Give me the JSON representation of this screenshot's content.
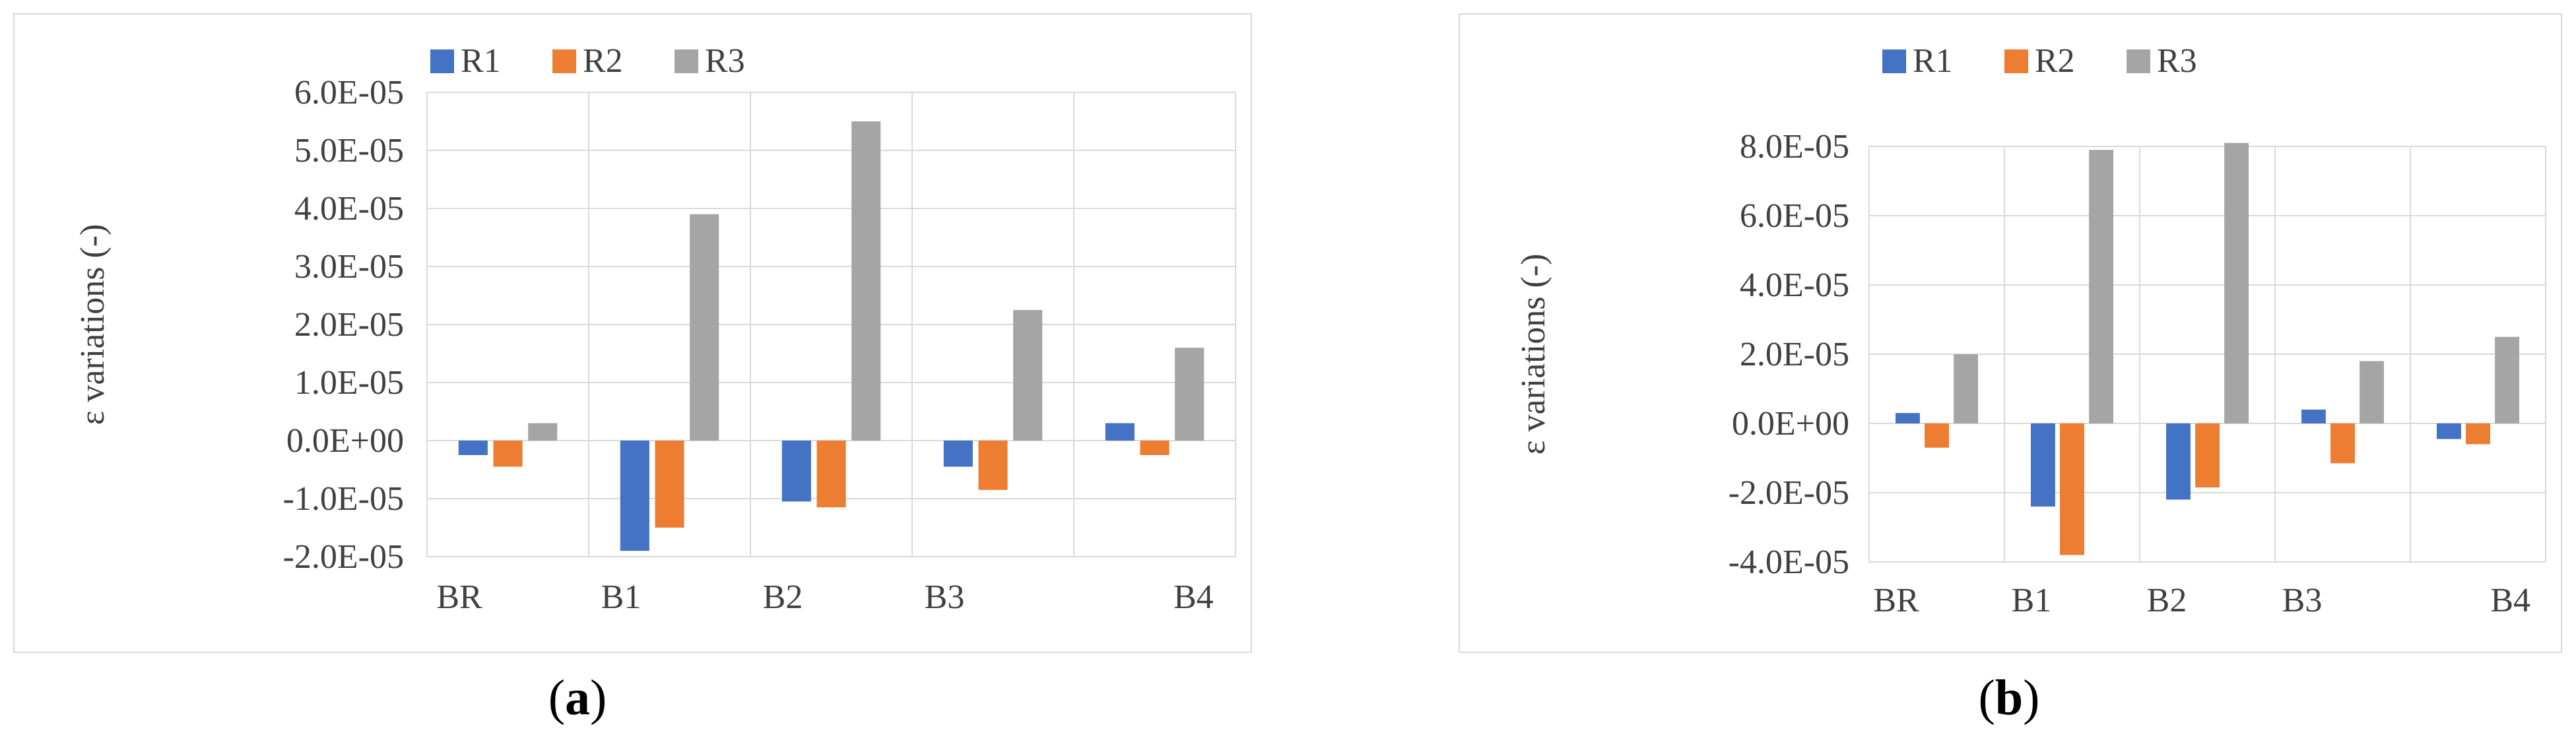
{
  "chart_data": [
    {
      "panel_label": "a",
      "type": "bar",
      "categories": [
        "BR",
        "B1",
        "B2",
        "B3",
        "B4"
      ],
      "series": [
        {
          "name": "R1",
          "color": "#4472c4",
          "values": [
            -2.5e-06,
            -1.9e-05,
            -1.05e-05,
            -4.5e-06,
            3e-06
          ]
        },
        {
          "name": "R2",
          "color": "#ed7d31",
          "values": [
            -4.5e-06,
            -1.5e-05,
            -1.15e-05,
            -8.5e-06,
            -2.5e-06
          ]
        },
        {
          "name": "R3",
          "color": "#a5a5a5",
          "values": [
            3e-06,
            3.9e-05,
            5.5e-05,
            2.25e-05,
            1.6e-05
          ]
        }
      ],
      "ylabel": "ε  variations (-)",
      "ylim": [
        -2e-05,
        6e-05
      ],
      "yticks": [
        -2e-05,
        -1e-05,
        0,
        1e-05,
        2e-05,
        3e-05,
        4e-05,
        5e-05,
        6e-05
      ],
      "ytick_labels": [
        "-2.0E-05",
        "-1.0E-05",
        "0.0E+00",
        "1.0E-05",
        "2.0E-05",
        "3.0E-05",
        "4.0E-05",
        "5.0E-05",
        "6.0E-05"
      ],
      "grid": true,
      "legend": "top-center"
    },
    {
      "panel_label": "b",
      "type": "bar",
      "categories": [
        "BR",
        "B1",
        "B2",
        "B3",
        "B4"
      ],
      "series": [
        {
          "name": "R1",
          "color": "#4472c4",
          "values": [
            3e-06,
            -2.4e-05,
            -2.2e-05,
            4e-06,
            -4.5e-06
          ]
        },
        {
          "name": "R2",
          "color": "#ed7d31",
          "values": [
            -7e-06,
            -3.8e-05,
            -1.85e-05,
            -1.15e-05,
            -6e-06
          ]
        },
        {
          "name": "R3",
          "color": "#a5a5a5",
          "values": [
            2e-05,
            7.9e-05,
            8.1e-05,
            1.8e-05,
            2.5e-05
          ]
        }
      ],
      "ylabel": "ε  variations (-)",
      "ylim": [
        -4e-05,
        8e-05
      ],
      "yticks": [
        -4e-05,
        -2e-05,
        0,
        2e-05,
        4e-05,
        6e-05,
        8e-05
      ],
      "ytick_labels": [
        "-4.0E-05",
        "-2.0E-05",
        "0.0E+00",
        "2.0E-05",
        "4.0E-05",
        "6.0E-05",
        "8.0E-05"
      ],
      "grid": true,
      "legend": "top-center"
    }
  ],
  "captions": {
    "a": {
      "open": "(",
      "label": "a",
      "close": ")"
    },
    "b": {
      "open": "(",
      "label": "b",
      "close": ")"
    }
  }
}
